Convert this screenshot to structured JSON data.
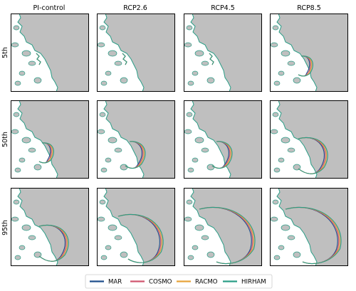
{
  "columns": [
    "PI-control",
    "RCP2.6",
    "RCP4.5",
    "RCP8.5"
  ],
  "rows": [
    "5th",
    "50th",
    "95th"
  ],
  "colors": {
    "land": "#bfbfbf",
    "ocean": "#ffffff",
    "frame": "#000000"
  },
  "legend": [
    {
      "name": "MAR",
      "color": "#1f4e8c"
    },
    {
      "name": "COSMO",
      "color": "#d1566f"
    },
    {
      "name": "RACMO",
      "color": "#e8a33a"
    },
    {
      "name": "HIRHAM",
      "color": "#2a9d86"
    }
  ],
  "chart_data": {
    "type": "map-panel-grid",
    "columns": [
      "PI-control",
      "RCP2.6",
      "RCP4.5",
      "RCP8.5"
    ],
    "rows": [
      "5th",
      "50th",
      "95th"
    ],
    "series": [
      {
        "name": "MAR"
      },
      {
        "name": "COSMO"
      },
      {
        "name": "RACMO"
      },
      {
        "name": "HIRHAM"
      }
    ],
    "extent_level": [
      [
        0,
        0,
        0,
        1
      ],
      [
        1,
        2,
        2,
        3
      ],
      [
        3,
        4,
        5,
        5
      ]
    ],
    "legend_position": "bottom-center",
    "grid": false
  }
}
